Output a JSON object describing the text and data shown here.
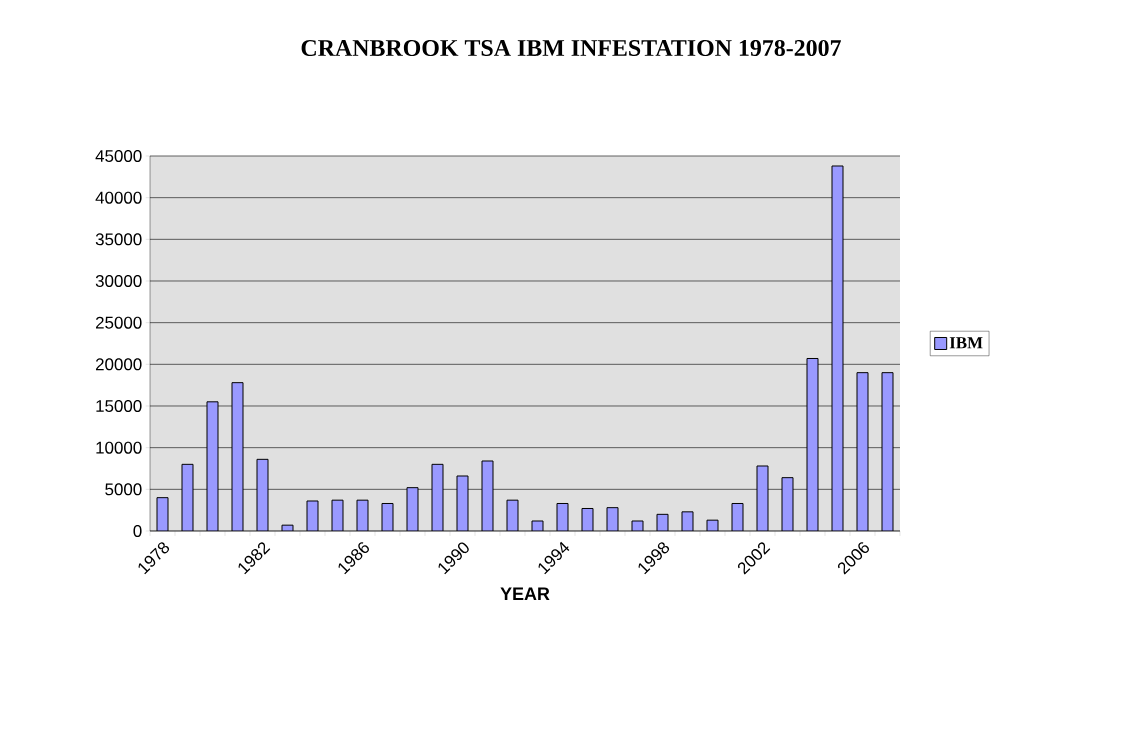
{
  "chart_data": {
    "type": "bar",
    "title": "CRANBROOK TSA IBM INFESTATION 1978-2007",
    "xlabel": "YEAR",
    "categories": [
      "1978",
      null,
      null,
      null,
      "1982",
      null,
      null,
      null,
      "1986",
      null,
      null,
      null,
      "1990",
      null,
      null,
      null,
      "1994",
      null,
      null,
      null,
      "1998",
      null,
      null,
      null,
      "2002",
      null,
      null,
      null,
      "2006",
      null
    ],
    "series": [
      {
        "name": "IBM",
        "color": "#9999ff",
        "values": [
          4000,
          8000,
          15500,
          17800,
          8600,
          700,
          3600,
          3700,
          3700,
          3300,
          5200,
          8000,
          6600,
          8400,
          3700,
          1200,
          3300,
          2700,
          2800,
          1200,
          2000,
          2300,
          1300,
          3300,
          7800,
          6400,
          20700,
          43800,
          19000,
          19000
        ]
      }
    ],
    "ylim": [
      0,
      45000
    ],
    "yticks": [
      0,
      5000,
      10000,
      15000,
      20000,
      25000,
      30000,
      35000,
      40000,
      45000
    ],
    "grid": "y",
    "legend": "right"
  }
}
